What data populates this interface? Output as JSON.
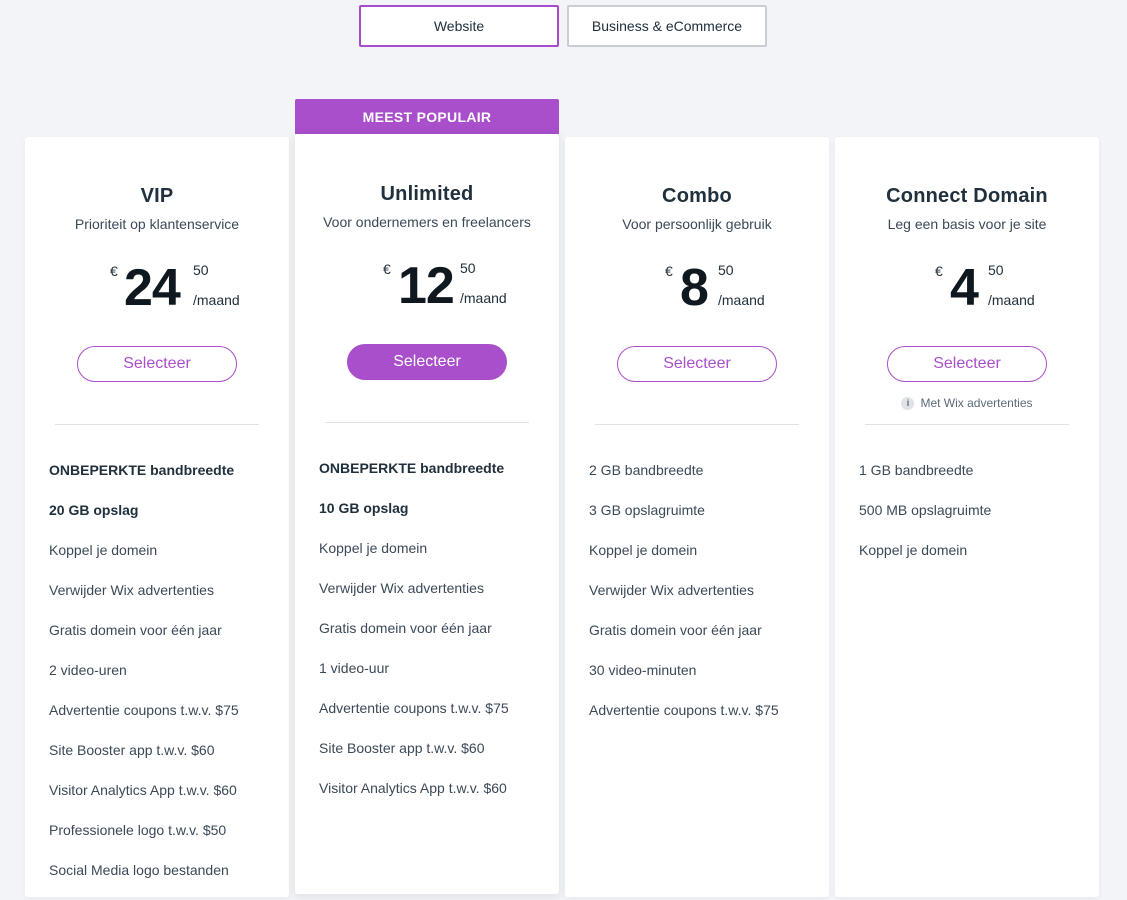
{
  "tabs": [
    {
      "label": "Website",
      "active": true
    },
    {
      "label": "Business & eCommerce",
      "active": false
    }
  ],
  "badge": "MEEST POPULAIR",
  "accent_color": "#a94fcb",
  "plans": [
    {
      "name": "VIP",
      "description": "Prioriteit op klantenservice",
      "currency": "€",
      "amount": "24",
      "cents": "50",
      "period": "/maand",
      "button": "Selecteer",
      "features": [
        "ONBEPERKTE bandbreedte",
        "20 GB opslag",
        "Koppel je domein",
        "Verwijder Wix advertenties",
        "Gratis domein voor één jaar",
        "2 video-uren",
        "Advertentie coupons t.w.v. $75",
        "Site Booster app t.w.v. $60",
        "Visitor Analytics App t.w.v. $60",
        "Professionele logo t.w.v. $50",
        "Social Media logo bestanden"
      ]
    },
    {
      "name": "Unlimited",
      "description": "Voor ondernemers en freelancers",
      "currency": "€",
      "amount": "12",
      "cents": "50",
      "period": "/maand",
      "button": "Selecteer",
      "features": [
        "ONBEPERKTE bandbreedte",
        "10 GB opslag",
        "Koppel je domein",
        "Verwijder Wix advertenties",
        "Gratis domein voor één jaar",
        "1 video-uur",
        "Advertentie coupons t.w.v. $75",
        "Site Booster app t.w.v. $60",
        "Visitor Analytics App t.w.v. $60"
      ]
    },
    {
      "name": "Combo",
      "description": "Voor persoonlijk gebruik",
      "currency": "€",
      "amount": "8",
      "cents": "50",
      "period": "/maand",
      "button": "Selecteer",
      "features": [
        "2 GB bandbreedte",
        "3 GB opslagruimte",
        "Koppel je domein",
        "Verwijder Wix advertenties",
        "Gratis domein voor één jaar",
        "30 video-minuten",
        "Advertentie coupons t.w.v. $75"
      ]
    },
    {
      "name": "Connect Domain",
      "description": "Leg een basis voor je site",
      "currency": "€",
      "amount": "4",
      "cents": "50",
      "period": "/maand",
      "button": "Selecteer",
      "note": "Met Wix advertenties",
      "features": [
        "1 GB bandbreedte",
        "500 MB opslagruimte",
        "Koppel je domein"
      ]
    }
  ]
}
